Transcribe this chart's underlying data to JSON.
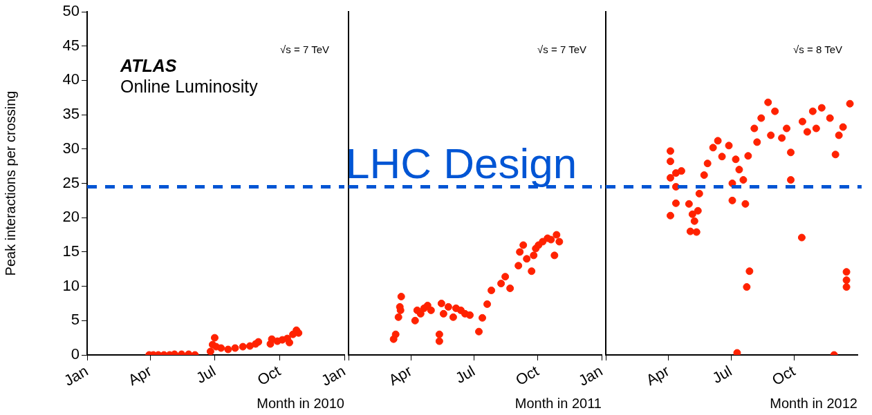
{
  "chart_data": [
    {
      "type": "scatter",
      "xlabel": "Month in 2010",
      "ylabel": "Peak interactions per crossing",
      "marker": "circle",
      "tick_labels": "xy",
      "xlim": [
        "2010-01-01",
        "2011-01-01"
      ],
      "ylim": [
        0,
        50
      ],
      "yticks": [
        0,
        5,
        10,
        15,
        20,
        25,
        30,
        35,
        40,
        45,
        50
      ],
      "xticks": [
        {
          "value": "2010-01-01",
          "label": "Jan"
        },
        {
          "value": "2010-04-01",
          "label": "Apr"
        },
        {
          "value": "2010-07-01",
          "label": "Jul"
        },
        {
          "value": "2010-10-01",
          "label": "Oct"
        },
        {
          "value": "2011-01-01",
          "label": "Jan"
        }
      ],
      "annotations": [
        "√s = 7 TeV",
        "ATLAS",
        "Online Luminosity"
      ],
      "ref_lines": [
        {
          "axis": "y",
          "value": 24.5,
          "color": "#0055d4",
          "line_style": "dashed"
        }
      ],
      "series": [
        {
          "color": "#ff2200",
          "x": [
            "2010-03-30",
            "2010-04-05",
            "2010-04-12",
            "2010-04-20",
            "2010-04-28",
            "2010-05-05",
            "2010-05-15",
            "2010-05-25",
            "2010-06-03",
            "2010-06-25",
            "2010-06-28",
            "2010-07-01",
            "2010-07-03",
            "2010-07-10",
            "2010-07-20",
            "2010-07-30",
            "2010-08-10",
            "2010-08-20",
            "2010-08-28",
            "2010-09-01",
            "2010-09-18",
            "2010-09-20",
            "2010-09-28",
            "2010-10-05",
            "2010-10-12",
            "2010-10-15",
            "2010-10-20",
            "2010-10-25",
            "2010-10-28"
          ],
          "values": [
            0,
            0,
            0,
            0,
            0,
            0.1,
            0.1,
            0.1,
            0,
            0.5,
            1.5,
            2.5,
            1.2,
            1.0,
            0.8,
            1.0,
            1.2,
            1.3,
            1.6,
            1.9,
            1.6,
            2.3,
            2.0,
            2.2,
            2.4,
            1.8,
            3.0,
            3.6,
            3.2
          ]
        }
      ]
    },
    {
      "type": "scatter",
      "xlabel": "Month in 2011",
      "marker": "circle",
      "tick_labels": "x",
      "xlim": [
        "2011-01-01",
        "2012-01-01"
      ],
      "ylim": [
        0,
        50
      ],
      "yticks": [
        0,
        5,
        10,
        15,
        20,
        25,
        30,
        35,
        40,
        45,
        50
      ],
      "xticks": [
        {
          "value": "2011-01-01",
          "label": null
        },
        {
          "value": "2011-04-01",
          "label": "Apr"
        },
        {
          "value": "2011-07-01",
          "label": "Jul"
        },
        {
          "value": "2011-10-01",
          "label": "Oct"
        },
        {
          "value": "2012-01-01",
          "label": "Jan"
        }
      ],
      "annotations": [
        "√s = 7 TeV"
      ],
      "ref_lines": [
        {
          "axis": "y",
          "value": 24.5,
          "label": "LHC Design",
          "color": "#0055d4",
          "line_style": "dashed"
        }
      ],
      "series": [
        {
          "color": "#ff2200",
          "x": [
            "2011-03-07",
            "2011-03-10",
            "2011-03-14",
            "2011-03-16",
            "2011-03-17",
            "2011-03-18",
            "2011-04-07",
            "2011-04-10",
            "2011-04-15",
            "2011-04-20",
            "2011-04-25",
            "2011-04-30",
            "2011-05-12",
            "2011-05-12",
            "2011-05-15",
            "2011-05-18",
            "2011-05-25",
            "2011-06-01",
            "2011-06-05",
            "2011-06-12",
            "2011-06-18",
            "2011-06-25",
            "2011-07-08",
            "2011-07-13",
            "2011-07-20",
            "2011-07-26",
            "2011-08-09",
            "2011-08-15",
            "2011-08-22",
            "2011-09-03",
            "2011-09-05",
            "2011-09-10",
            "2011-09-15",
            "2011-09-22",
            "2011-09-25",
            "2011-09-28",
            "2011-10-02",
            "2011-10-08",
            "2011-10-15",
            "2011-10-20",
            "2011-10-25",
            "2011-10-28",
            "2011-11-01"
          ],
          "values": [
            2.3,
            3.0,
            5.5,
            7.0,
            6.5,
            8.5,
            5.0,
            6.5,
            6.0,
            6.8,
            7.2,
            6.5,
            2.0,
            3.0,
            7.5,
            6.0,
            7.0,
            5.5,
            6.8,
            6.5,
            6.0,
            5.8,
            3.4,
            5.4,
            7.4,
            9.4,
            10.4,
            11.4,
            9.7,
            13.0,
            15.0,
            16.0,
            14.0,
            12.2,
            14.5,
            15.5,
            16.0,
            16.5,
            17.0,
            16.8,
            14.5,
            17.5,
            16.5
          ]
        }
      ]
    },
    {
      "type": "scatter",
      "xlabel": "Month in 2012",
      "marker": "circle",
      "tick_labels": "x",
      "xlim": [
        "2012-01-01",
        "2013-01-01"
      ],
      "ylim": [
        0,
        50
      ],
      "yticks": [
        0,
        5,
        10,
        15,
        20,
        25,
        30,
        35,
        40,
        45,
        50
      ],
      "xticks": [
        {
          "value": "2012-01-01",
          "label": null
        },
        {
          "value": "2012-04-01",
          "label": "Apr"
        },
        {
          "value": "2012-07-01",
          "label": "Jul"
        },
        {
          "value": "2012-10-01",
          "label": "Oct"
        }
      ],
      "annotations": [
        "√s = 8 TeV"
      ],
      "ref_lines": [
        {
          "axis": "y",
          "value": 24.5,
          "color": "#0055d4",
          "line_style": "dashed"
        }
      ],
      "series": [
        {
          "color": "#ff2200",
          "x": [
            "2012-04-04",
            "2012-04-04",
            "2012-04-04",
            "2012-04-04",
            "2012-04-12",
            "2012-04-12",
            "2012-04-12",
            "2012-04-20",
            "2012-05-01",
            "2012-05-03",
            "2012-05-06",
            "2012-05-09",
            "2012-05-12",
            "2012-05-14",
            "2012-05-16",
            "2012-05-23",
            "2012-05-28",
            "2012-06-05",
            "2012-06-12",
            "2012-06-18",
            "2012-06-28",
            "2012-07-03",
            "2012-07-03",
            "2012-07-08",
            "2012-07-13",
            "2012-07-19",
            "2012-07-26",
            "2012-07-22",
            "2012-07-28",
            "2012-07-24",
            "2012-07-10",
            "2012-08-08",
            "2012-08-04",
            "2012-08-14",
            "2012-08-24",
            "2012-08-28",
            "2012-09-03",
            "2012-09-13",
            "2012-09-20",
            "2012-09-26",
            "2012-09-26",
            "2012-10-12",
            "2012-10-13",
            "2012-10-20",
            "2012-10-28",
            "2012-11-02",
            "2012-11-10",
            "2012-11-22",
            "2012-11-30",
            "2012-12-05",
            "2012-12-11",
            "2012-11-28",
            "2012-12-16",
            "2012-12-16",
            "2012-12-16",
            "2012-12-21"
          ],
          "values": [
            29.7,
            28.2,
            25.8,
            20.3,
            26.5,
            24.5,
            22.1,
            26.8,
            22.0,
            18.0,
            20.5,
            19.5,
            17.9,
            21.0,
            23.5,
            26.2,
            27.9,
            30.2,
            31.2,
            28.9,
            30.5,
            25.0,
            22.5,
            28.5,
            27.0,
            25.5,
            29.0,
            22.0,
            12.2,
            9.9,
            0.3,
            31.0,
            33.0,
            34.5,
            36.8,
            32.0,
            35.5,
            31.6,
            33.0,
            29.5,
            25.5,
            17.1,
            34.0,
            32.5,
            35.5,
            33.0,
            36.0,
            34.5,
            29.2,
            32.0,
            33.2,
            0,
            12.1,
            10.9,
            9.9,
            36.6
          ]
        }
      ]
    }
  ]
}
